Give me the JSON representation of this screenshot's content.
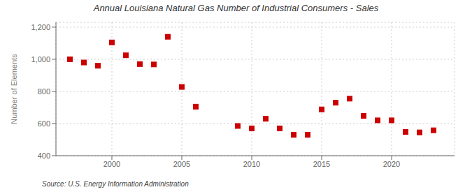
{
  "chart_data": {
    "type": "scatter",
    "title": "Annual Louisiana Natural Gas Number of Industrial Consumers - Sales",
    "ylabel": "Number of Elements",
    "annotations": [
      "Source: U.S. Energy Information Administration"
    ],
    "x": [
      1997,
      1998,
      1999,
      2000,
      2001,
      2002,
      2003,
      2004,
      2005,
      2006,
      2009,
      2010,
      2011,
      2012,
      2013,
      2014,
      2015,
      2016,
      2017,
      2018,
      2019,
      2020,
      2021,
      2022,
      2023
    ],
    "values": [
      1000,
      980,
      960,
      1105,
      1025,
      970,
      968,
      1140,
      828,
      705,
      585,
      570,
      630,
      570,
      530,
      530,
      688,
      730,
      755,
      648,
      620,
      620,
      548,
      545,
      558
    ],
    "color": "#cc0000",
    "marker": "square",
    "xlim": [
      1996,
      2024.5
    ],
    "ylim": [
      400,
      1230
    ],
    "xticks": [
      2000,
      2005,
      2010,
      2015,
      2020
    ],
    "yticks": [
      400,
      600,
      800,
      {
        "value": 1000,
        "label": "1,000"
      },
      {
        "value": 1200,
        "label": "1,200"
      }
    ],
    "grid": true
  }
}
